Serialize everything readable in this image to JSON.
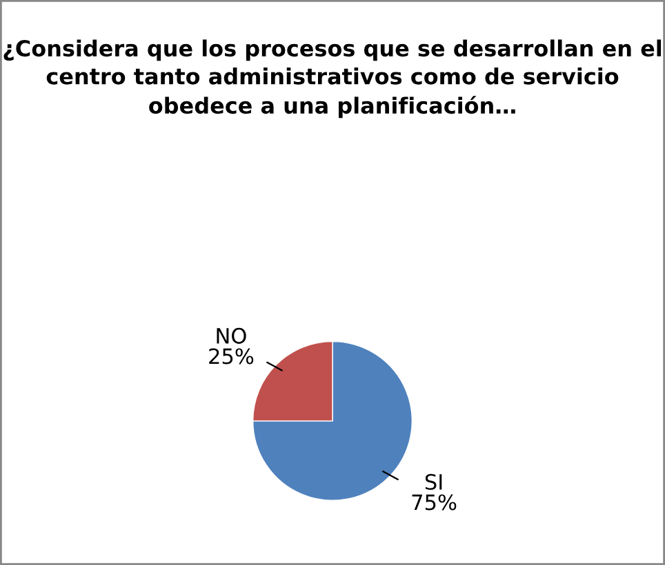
{
  "chart_data": {
    "type": "pie",
    "title": "¿Considera que los procesos que se desarrollan en el centro tanto administrativos como de servicio obedece a una planificación…",
    "categories": [
      "SI",
      "NO"
    ],
    "values": [
      75,
      25
    ],
    "value_labels": [
      "75%",
      "25%"
    ],
    "colors": [
      "#4f81bd",
      "#c0504d"
    ]
  }
}
